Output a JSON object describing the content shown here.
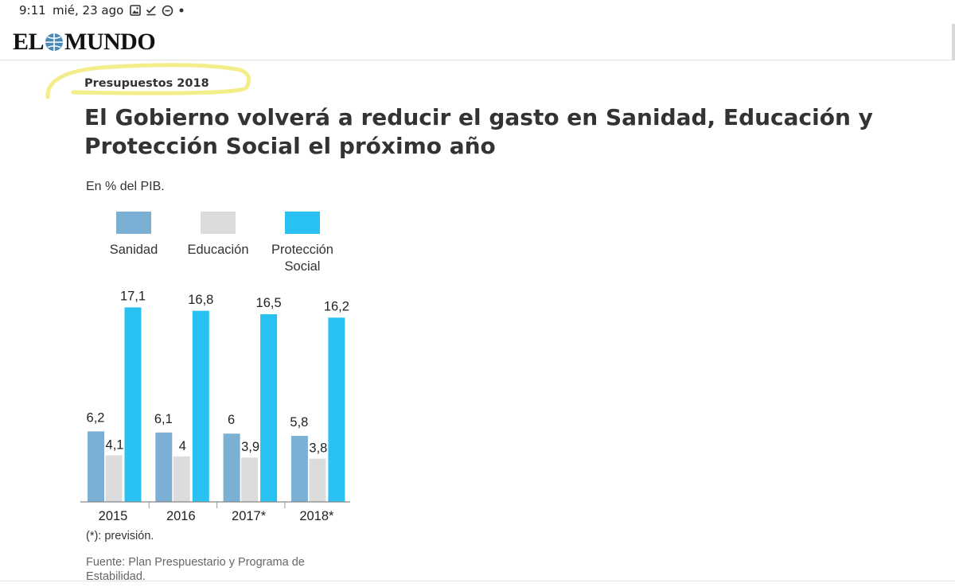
{
  "status_bar": {
    "time": "9:11",
    "date": "mié, 23 ago"
  },
  "site": {
    "logo_left": "EL",
    "logo_right": "MUNDO"
  },
  "article": {
    "kicker": "Presupuestos 2018",
    "headline": "El Gobierno volverá a reducir el gasto en Sanidad, Educación y Protección Social el próximo año"
  },
  "chart_data": {
    "type": "bar",
    "unit_label": "En % del PIB.",
    "categories": [
      "2015",
      "2016",
      "2017*",
      "2018*"
    ],
    "series": [
      {
        "name": "Sanidad",
        "color": "#7bafd4",
        "values": [
          6.2,
          6.1,
          6,
          5.8
        ],
        "labels": [
          "6,2",
          "6,1",
          "6",
          "5,8"
        ]
      },
      {
        "name": "Educación",
        "color": "#dcdcdc",
        "values": [
          4.1,
          4,
          3.9,
          3.8
        ],
        "labels": [
          "4,1",
          "4",
          "3,9",
          "3,8"
        ]
      },
      {
        "name": "Protección Social",
        "color": "#29c0f2",
        "values": [
          17.1,
          16.8,
          16.5,
          16.2
        ],
        "labels": [
          "17,1",
          "16,8",
          "16,5",
          "16,2"
        ]
      }
    ],
    "ylim": [
      0,
      17.1
    ],
    "grid": false,
    "legend": "top",
    "note": "(*): previsión.",
    "source": "Fuente: Plan Prespuestario y Programa de Estabilidad."
  }
}
